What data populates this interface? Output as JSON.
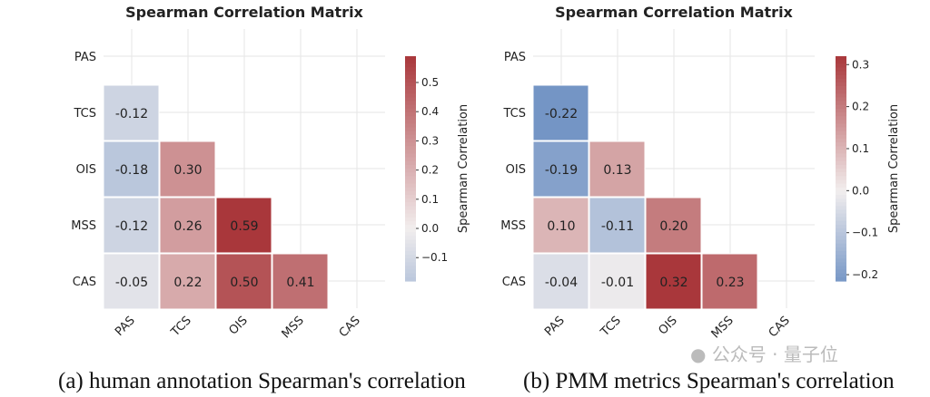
{
  "chart_data": [
    {
      "type": "heatmap",
      "title": "Spearman Correlation Matrix",
      "caption": "(a) human annotation Spearman's correlation",
      "labels": [
        "PAS",
        "TCS",
        "OIS",
        "MSS",
        "CAS"
      ],
      "mask": "upper triangle incl. diagonal",
      "values": [
        [
          null,
          null,
          null,
          null,
          null
        ],
        [
          -0.12,
          null,
          null,
          null,
          null
        ],
        [
          -0.18,
          0.3,
          null,
          null,
          null
        ],
        [
          -0.12,
          0.26,
          0.59,
          null,
          null
        ],
        [
          -0.05,
          0.22,
          0.5,
          0.41,
          null
        ]
      ],
      "colorbar": {
        "label": "Spearman Correlation",
        "range": [
          -0.18,
          0.59
        ],
        "ticks": [
          -0.1,
          0.0,
          0.1,
          0.2,
          0.3,
          0.4,
          0.5
        ],
        "tick_labels": [
          "−0.1",
          "0.0",
          "0.1",
          "0.2",
          "0.3",
          "0.4",
          "0.5"
        ]
      },
      "grid": true
    },
    {
      "type": "heatmap",
      "title": "Spearman Correlation Matrix",
      "caption": "(b) PMM metrics Spearman's correlation",
      "labels": [
        "PAS",
        "TCS",
        "OIS",
        "MSS",
        "CAS"
      ],
      "mask": "upper triangle incl. diagonal",
      "values": [
        [
          null,
          null,
          null,
          null,
          null
        ],
        [
          -0.22,
          null,
          null,
          null,
          null
        ],
        [
          -0.19,
          0.13,
          null,
          null,
          null
        ],
        [
          0.1,
          -0.11,
          0.2,
          null,
          null
        ],
        [
          -0.04,
          -0.01,
          0.32,
          0.23,
          null
        ]
      ],
      "colorbar": {
        "label": "Spearman Correlation",
        "range": [
          -0.215,
          0.32
        ],
        "ticks": [
          -0.2,
          -0.1,
          0.0,
          0.1,
          0.2,
          0.3
        ],
        "tick_labels": [
          "−0.2",
          "−0.1",
          "0.0",
          "0.1",
          "0.2",
          "0.3"
        ]
      },
      "grid": true
    }
  ],
  "colors": {
    "negative": "#3b6db3",
    "neutral": "#f2eeee",
    "positive": "#a9373b"
  },
  "watermark": "公众号 · 量子位"
}
